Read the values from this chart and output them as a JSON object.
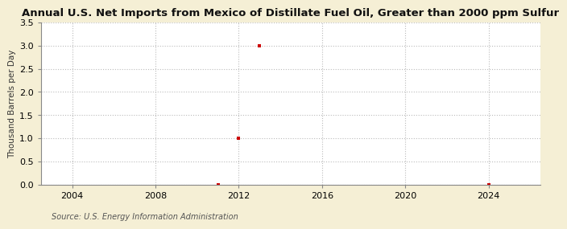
{
  "title": "Annual U.S. Net Imports from Mexico of Distillate Fuel Oil, Greater than 2000 ppm Sulfur",
  "ylabel": "Thousand Barrels per Day",
  "source": "Source: U.S. Energy Information Administration",
  "background_color": "#f5efd5",
  "plot_background_color": "#ffffff",
  "xlim": [
    2002.5,
    2026.5
  ],
  "ylim": [
    0.0,
    3.5
  ],
  "yticks": [
    0.0,
    0.5,
    1.0,
    1.5,
    2.0,
    2.5,
    3.0,
    3.5
  ],
  "xticks": [
    2004,
    2008,
    2012,
    2016,
    2020,
    2024
  ],
  "data_points": [
    {
      "year": 2011,
      "value": 0.0
    },
    {
      "year": 2012,
      "value": 1.0
    },
    {
      "year": 2013,
      "value": 3.0
    },
    {
      "year": 2024,
      "value": 0.0
    }
  ],
  "marker_color": "#cc0000",
  "marker_style": "s",
  "marker_size": 3.5,
  "grid_color": "#bbbbbb",
  "title_fontsize": 9.5,
  "axis_fontsize": 7.5,
  "tick_fontsize": 8,
  "source_fontsize": 7
}
